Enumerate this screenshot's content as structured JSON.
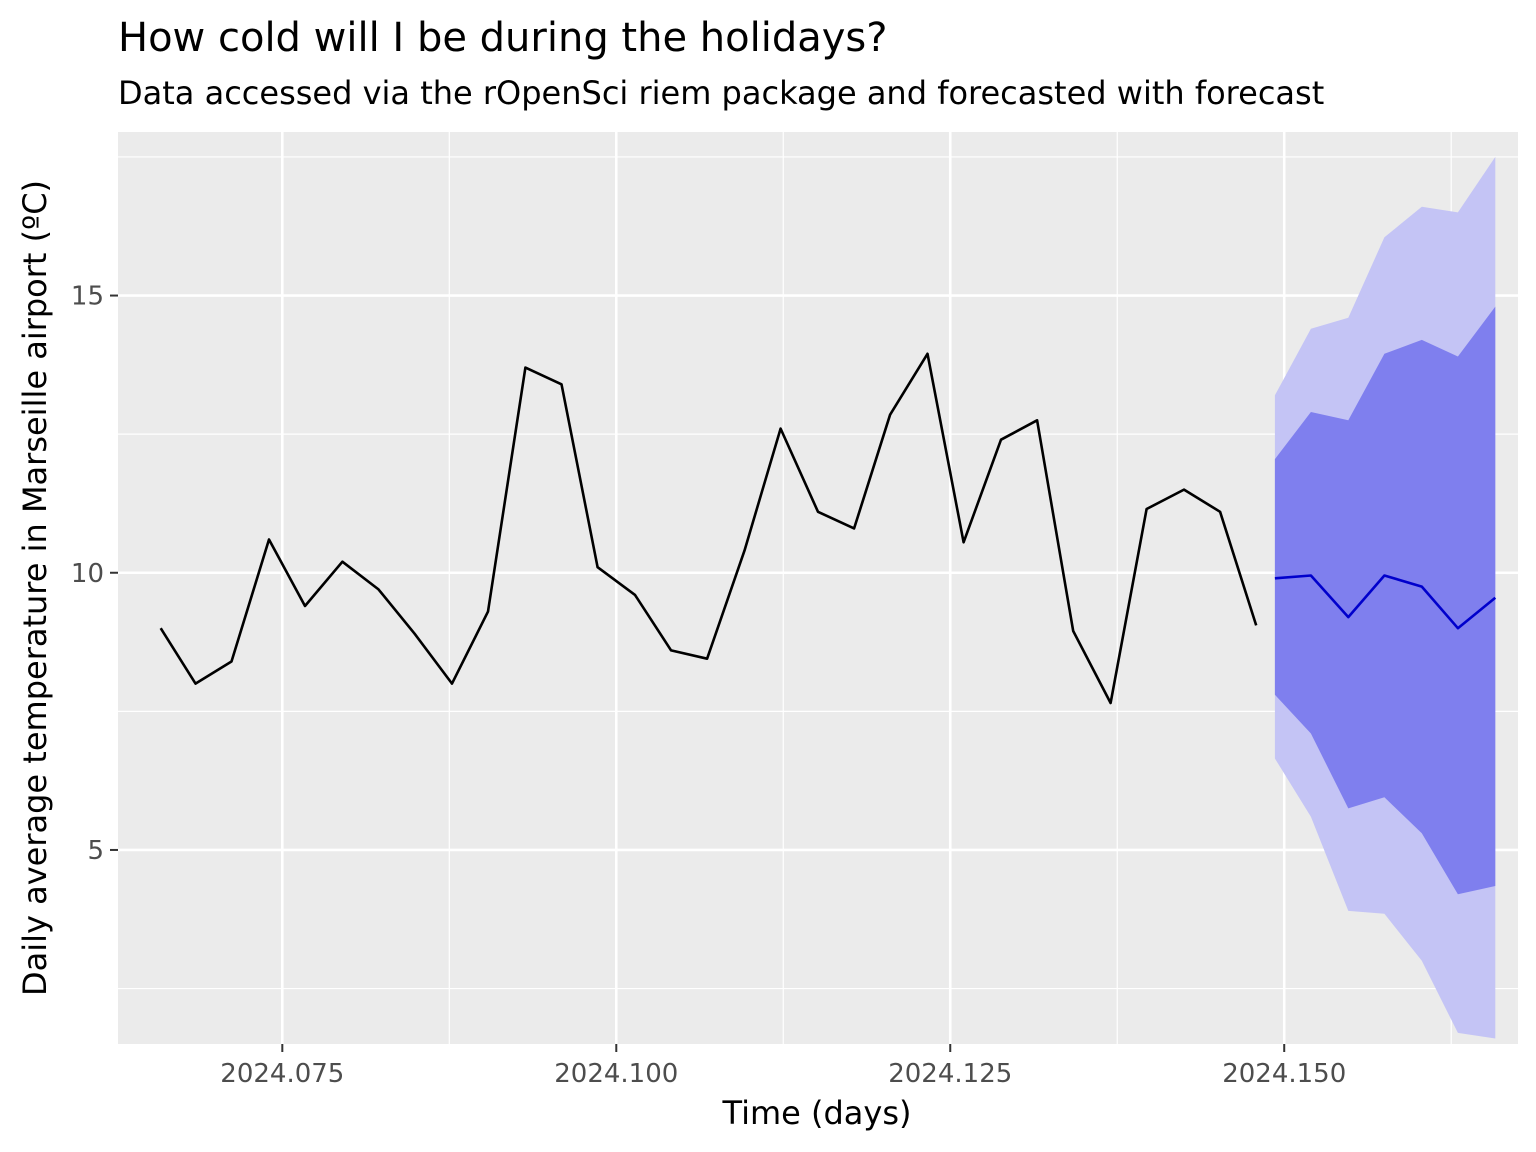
{
  "chart_data": {
    "type": "line",
    "title": "How cold will I be during the holidays?",
    "subtitle": "Data accessed via the rOpenSci riem package and forecasted with forecast",
    "xlabel": "Time (days)",
    "ylabel": "Daily average temperature in Marseille airport (ºC)",
    "xlim": [
      2024.0627,
      2024.1675
    ],
    "ylim": [
      1.5,
      17.95
    ],
    "x_ticks": [
      {
        "value": 2024.075,
        "label": "2024.075"
      },
      {
        "value": 2024.1,
        "label": "2024.100"
      },
      {
        "value": 2024.125,
        "label": "2024.125"
      },
      {
        "value": 2024.15,
        "label": "2024.150"
      }
    ],
    "y_ticks": [
      {
        "value": 5,
        "label": "5"
      },
      {
        "value": 10,
        "label": "10"
      },
      {
        "value": 15,
        "label": "15"
      }
    ],
    "grid": true,
    "background": "#ebebeb",
    "series": [
      {
        "kind": "observed",
        "color": "#000000",
        "x": [
          2024.0659,
          2024.0685,
          2024.0712,
          2024.074,
          2024.0767,
          2024.0795,
          2024.0822,
          2024.0849,
          2024.0877,
          2024.0904,
          2024.0932,
          2024.0959,
          2024.0986,
          2024.1014,
          2024.1041,
          2024.1068,
          2024.1096,
          2024.1123,
          2024.1151,
          2024.1178,
          2024.1205,
          2024.1233,
          2024.126,
          2024.1288,
          2024.1315,
          2024.1342,
          2024.137,
          2024.1397,
          2024.1425,
          2024.1452,
          2024.1479
        ],
        "y": [
          9.0,
          8.0,
          8.4,
          10.6,
          9.4,
          10.2,
          9.7,
          8.9,
          8.0,
          9.3,
          13.7,
          13.4,
          10.1,
          9.6,
          8.6,
          8.45,
          10.4,
          12.6,
          11.1,
          10.8,
          12.85,
          13.95,
          10.55,
          12.4,
          12.75,
          8.95,
          7.65,
          11.15,
          11.5,
          11.1,
          9.05
        ]
      },
      {
        "kind": "forecast",
        "color": "#0000cc",
        "x": [
          2024.1493,
          2024.152,
          2024.1548,
          2024.1575,
          2024.1603,
          2024.163,
          2024.1658
        ],
        "y": [
          9.9,
          9.95,
          9.2,
          9.95,
          9.75,
          9.0,
          9.55
        ],
        "lo80": [
          7.8,
          7.1,
          5.75,
          5.95,
          5.3,
          4.2,
          4.35
        ],
        "hi80": [
          12.05,
          12.9,
          12.75,
          13.95,
          14.2,
          13.9,
          14.8
        ],
        "lo95": [
          6.65,
          5.6,
          3.9,
          3.85,
          3.0,
          1.7,
          1.6
        ],
        "hi95": [
          13.2,
          14.4,
          14.6,
          16.05,
          16.6,
          16.5,
          17.5
        ],
        "band80_color": "#7f7fee",
        "band95_color": "#c4c4f5"
      }
    ]
  }
}
